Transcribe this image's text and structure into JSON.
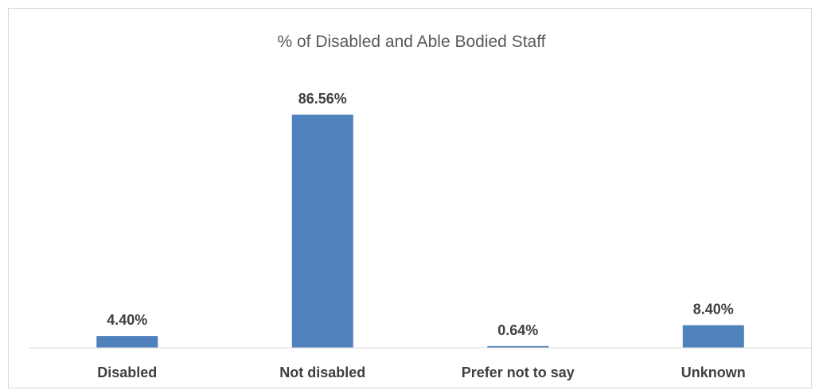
{
  "chart_data": {
    "type": "bar",
    "title": "% of Disabled and Able Bodied Staff",
    "xlabel": "",
    "ylabel": "",
    "categories": [
      "Disabled",
      "Not disabled",
      "Prefer not to say",
      "Unknown"
    ],
    "values": [
      4.4,
      86.56,
      0.64,
      8.4
    ],
    "data_labels": [
      "4.40%",
      "86.56%",
      "0.64%",
      "8.40%"
    ],
    "unit": "%",
    "ylim": [
      0,
      100
    ],
    "grid": false,
    "legend": "none",
    "colors": {
      "bar": "#4f81bd",
      "axis": "#d9d9d9",
      "text": "#404040",
      "title": "#595959"
    }
  }
}
